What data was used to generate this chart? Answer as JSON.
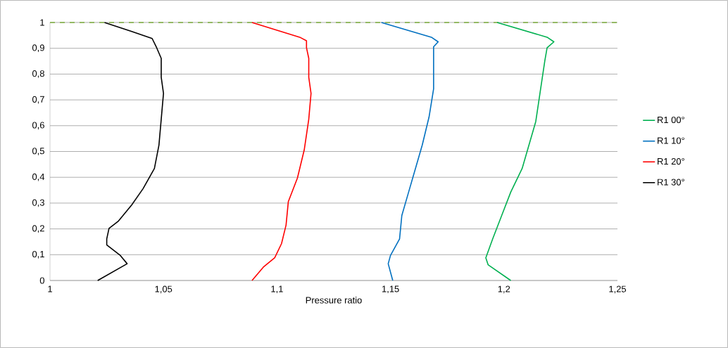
{
  "chart_data": {
    "type": "line",
    "xlabel": "Pressure ratio",
    "xlim": [
      1,
      1.25
    ],
    "ylim": [
      0,
      1
    ],
    "xticks": [
      1,
      {
        "value": 1.05,
        "label": "1,05"
      },
      {
        "value": 1.1,
        "label": "1,1"
      },
      {
        "value": 1.15,
        "label": "1,15"
      },
      {
        "value": 1.2,
        "label": "1,2"
      },
      {
        "value": 1.25,
        "label": "1,25"
      }
    ],
    "yticks": [
      0,
      {
        "value": 0.1,
        "label": "0,1"
      },
      {
        "value": 0.2,
        "label": "0,2"
      },
      {
        "value": 0.3,
        "label": "0,3"
      },
      {
        "value": 0.4,
        "label": "0,4"
      },
      {
        "value": 0.5,
        "label": "0,5"
      },
      {
        "value": 0.6,
        "label": "0,6"
      },
      {
        "value": 0.7,
        "label": "0,7"
      },
      {
        "value": 0.8,
        "label": "0,8"
      },
      {
        "value": 0.9,
        "label": "0,9"
      },
      1
    ],
    "grid": "y",
    "legend": "right",
    "marker": "none",
    "line_style": "solid",
    "ref_lines": [
      {
        "axis": "y",
        "value": 1,
        "color": "#7faf3f",
        "line_style": "dashed"
      }
    ],
    "series": [
      {
        "name": "R1 00°",
        "color": "#00b050",
        "x": [
          1.203,
          1.193,
          1.192,
          1.195,
          1.199,
          1.203,
          1.208,
          1.211,
          1.214,
          1.216,
          1.218,
          1.219,
          1.222,
          1.219,
          1.197
        ],
        "values": [
          0,
          0.061,
          0.088,
          0.161,
          0.252,
          0.343,
          0.434,
          0.525,
          0.616,
          0.734,
          0.852,
          0.902,
          0.925,
          0.943,
          1
        ]
      },
      {
        "name": "R1 10°",
        "color": "#0070c0",
        "x": [
          1.151,
          1.149,
          1.15,
          1.154,
          1.155,
          1.158,
          1.161,
          1.164,
          1.167,
          1.169,
          1.169,
          1.171,
          1.168,
          1.146
        ],
        "values": [
          0,
          0.065,
          0.097,
          0.161,
          0.252,
          0.343,
          0.434,
          0.525,
          0.634,
          0.743,
          0.906,
          0.925,
          0.943,
          1
        ]
      },
      {
        "name": "R1 20°",
        "color": "#ff0000",
        "x": [
          1.089,
          1.094,
          1.099,
          1.102,
          1.104,
          1.105,
          1.109,
          1.112,
          1.114,
          1.115,
          1.114,
          1.114,
          1.113,
          1.113,
          1.11,
          1.089
        ],
        "values": [
          0,
          0.052,
          0.088,
          0.143,
          0.215,
          0.306,
          0.397,
          0.506,
          0.625,
          0.725,
          0.788,
          0.861,
          0.902,
          0.929,
          0.943,
          1
        ]
      },
      {
        "name": "R1 30°",
        "color": "#000000",
        "x": [
          1.021,
          1.034,
          1.031,
          1.025,
          1.025,
          1.026,
          1.03,
          1.036,
          1.041,
          1.046,
          1.048,
          1.049,
          1.05,
          1.049,
          1.049,
          1.047,
          1.045,
          1.036,
          1.024
        ],
        "values": [
          0,
          0.065,
          0.097,
          0.138,
          0.161,
          0.202,
          0.229,
          0.293,
          0.356,
          0.434,
          0.525,
          0.625,
          0.725,
          0.788,
          0.861,
          0.902,
          0.938,
          0.965,
          1
        ]
      }
    ]
  }
}
